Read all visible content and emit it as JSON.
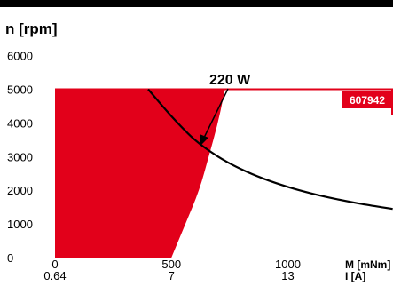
{
  "chart_data": {
    "type": "area",
    "y_axis_title": "n [rpm]",
    "y_ticks": [
      0,
      1000,
      2000,
      3000,
      4000,
      5000,
      6000
    ],
    "ylim": [
      0,
      6000
    ],
    "x_ticks_torque": [
      "0",
      "500",
      "1000"
    ],
    "x_ticks_current": [
      "0.64",
      "7",
      "13"
    ],
    "x_axis_label_torque": "M [mNm]",
    "x_axis_label_current": "I [A]",
    "xlim": [
      0,
      1450
    ],
    "badge": "607942",
    "annotation": "220 W",
    "series": [
      {
        "kind": "operating-range-fill",
        "color": "#e2001a",
        "points": [
          [
            0,
            5000
          ],
          [
            0,
            0
          ],
          [
            500,
            0
          ],
          [
            560,
            1000
          ],
          [
            620,
            2000
          ],
          [
            660,
            3000
          ],
          [
            700,
            4000
          ],
          [
            730,
            5000
          ]
        ]
      },
      {
        "kind": "power-limit-curve",
        "color": "#000000",
        "points": [
          [
            400,
            5000
          ],
          [
            500,
            4200
          ],
          [
            600,
            3500
          ],
          [
            700,
            3000
          ],
          [
            800,
            2625
          ],
          [
            900,
            2333
          ],
          [
            1000,
            2100
          ],
          [
            1100,
            1909
          ],
          [
            1200,
            1750
          ],
          [
            1300,
            1615
          ],
          [
            1400,
            1500
          ],
          [
            1450,
            1448
          ]
        ]
      }
    ]
  }
}
